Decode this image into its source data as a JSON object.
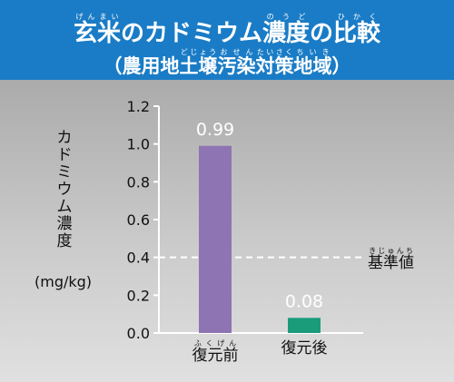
{
  "header": {
    "title": [
      {
        "text": "玄米",
        "ruby": "げんまい"
      },
      {
        "text": "の",
        "ruby": ""
      },
      {
        "text": "カドミウム",
        "ruby": ""
      },
      {
        "text": "濃度",
        "ruby": "のうど"
      },
      {
        "text": "の",
        "ruby": ""
      },
      {
        "text": "比較",
        "ruby": "ひかく"
      }
    ],
    "subtitle_open": "（",
    "subtitle": [
      {
        "text": "農用地",
        "ruby": ""
      },
      {
        "text": "土壌",
        "ruby": "どじょう"
      },
      {
        "text": "汚染",
        "ruby": "おせん"
      },
      {
        "text": "対策",
        "ruby": "たいさく"
      },
      {
        "text": "地域",
        "ruby": "ちいき"
      }
    ],
    "subtitle_close": "）"
  },
  "chart_data": {
    "type": "bar",
    "ylabel": "カドミウム濃度",
    "unit": "(mg/kg)",
    "ylim": [
      0,
      1.2
    ],
    "yticks": [
      "0.0",
      "0.2",
      "0.4",
      "0.6",
      "0.8",
      "1.0",
      "1.2"
    ],
    "categories": [
      {
        "text": "復元前",
        "ruby": "ふくげん"
      },
      {
        "text": "復元後",
        "ruby": ""
      }
    ],
    "values": [
      0.99,
      0.08
    ],
    "value_labels": [
      "0.99",
      "0.08"
    ],
    "bar_colors": [
      "#8f74b3",
      "#1a9c7a"
    ],
    "reference_line": {
      "value": 0.4,
      "label": {
        "text": "基準値",
        "ruby": "きじゅんち"
      }
    }
  }
}
